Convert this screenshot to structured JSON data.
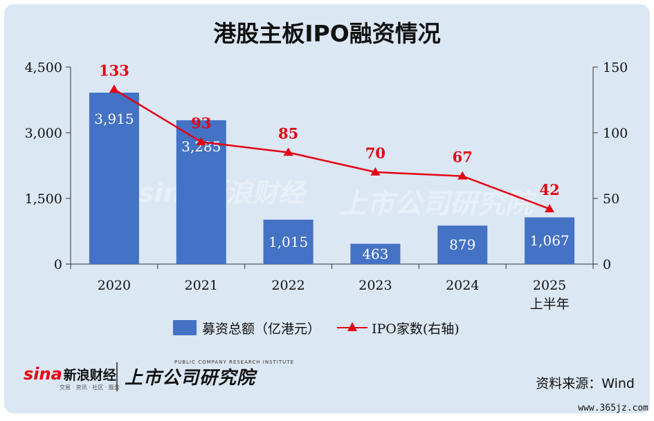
{
  "title": "港股主板IPO融资情况",
  "chart_data": {
    "type": "bar",
    "categories": [
      "2020",
      "2021",
      "2022",
      "2023",
      "2024",
      "2025上半年"
    ],
    "category_lines": [
      [
        "2020"
      ],
      [
        "2021"
      ],
      [
        "2022"
      ],
      [
        "2023"
      ],
      [
        "2024"
      ],
      [
        "2025",
        "上半年"
      ]
    ],
    "series": [
      {
        "name": "募资总额（亿港元）",
        "type": "bar",
        "axis": "left",
        "color": "#4472c4",
        "values": [
          3915,
          3285,
          1015,
          463,
          879,
          1067
        ],
        "labels": [
          "3,915",
          "3,285",
          "1,015",
          "463",
          "879",
          "1,067"
        ]
      },
      {
        "name": "IPO家数(右轴)",
        "type": "line",
        "axis": "right",
        "color": "#e60012",
        "values": [
          133,
          93,
          85,
          70,
          67,
          42
        ],
        "labels": [
          "133",
          "93",
          "85",
          "70",
          "67",
          "42"
        ]
      }
    ],
    "y_left": {
      "lim": [
        0,
        4500
      ],
      "ticks": [
        0,
        1500,
        3000,
        4500
      ],
      "tick_labels": [
        "0",
        "1,500",
        "3,000",
        "4,500"
      ]
    },
    "y_right": {
      "lim": [
        0,
        150
      ],
      "ticks": [
        0,
        50,
        100,
        150
      ],
      "tick_labels": [
        "0",
        "50",
        "100",
        "150"
      ]
    },
    "grid": false,
    "legend_position": "bottom"
  },
  "legend": {
    "bar_label": "募资总额（亿港元）",
    "line_label": "IPO家数(右轴)"
  },
  "footer": {
    "sina_mark": "sina",
    "sina_name": "新浪财经",
    "sina_sub": "交易 · 资讯 · 社区 · 服务",
    "institute_name": "上市公司研究院",
    "institute_en": "PUBLIC COMPANY RESEARCH INSTITUTE",
    "source": "资料来源：Wind",
    "site": "www.365jz.com"
  },
  "watermark": {
    "left": "sina新浪财经",
    "right": "上市公司研究院"
  }
}
